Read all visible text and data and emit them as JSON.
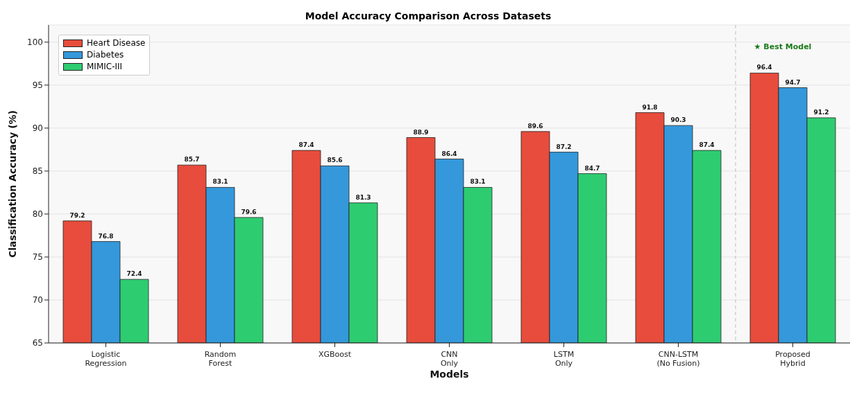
{
  "chart_data": {
    "type": "bar",
    "title": "Model Accuracy Comparison Across Datasets",
    "xlabel": "Models",
    "ylabel": "Classification Accuracy (%)",
    "categories": [
      "Logistic\nRegression",
      "Random\nForest",
      "XGBoost",
      "CNN\nOnly",
      "LSTM\nOnly",
      "CNN-LSTM\n(No Fusion)",
      "Proposed\nHybrid"
    ],
    "series": [
      {
        "name": "Heart Disease",
        "color": "#e74c3c",
        "values": [
          79.2,
          85.7,
          87.4,
          88.9,
          89.6,
          91.8,
          96.4
        ]
      },
      {
        "name": "Diabetes",
        "color": "#3498db",
        "values": [
          76.8,
          83.1,
          85.6,
          86.4,
          87.2,
          90.3,
          94.7
        ]
      },
      {
        "name": "MIMIC-III",
        "color": "#2ecc71",
        "values": [
          72.4,
          79.6,
          81.3,
          83.1,
          84.7,
          87.4,
          91.2
        ]
      }
    ],
    "ylim": [
      65,
      102
    ],
    "yticks": [
      65,
      70,
      75,
      80,
      85,
      90,
      95,
      100
    ],
    "grid": "y",
    "legend": "top left",
    "data_labels": true,
    "annotations": [
      "★ Best Model"
    ]
  }
}
